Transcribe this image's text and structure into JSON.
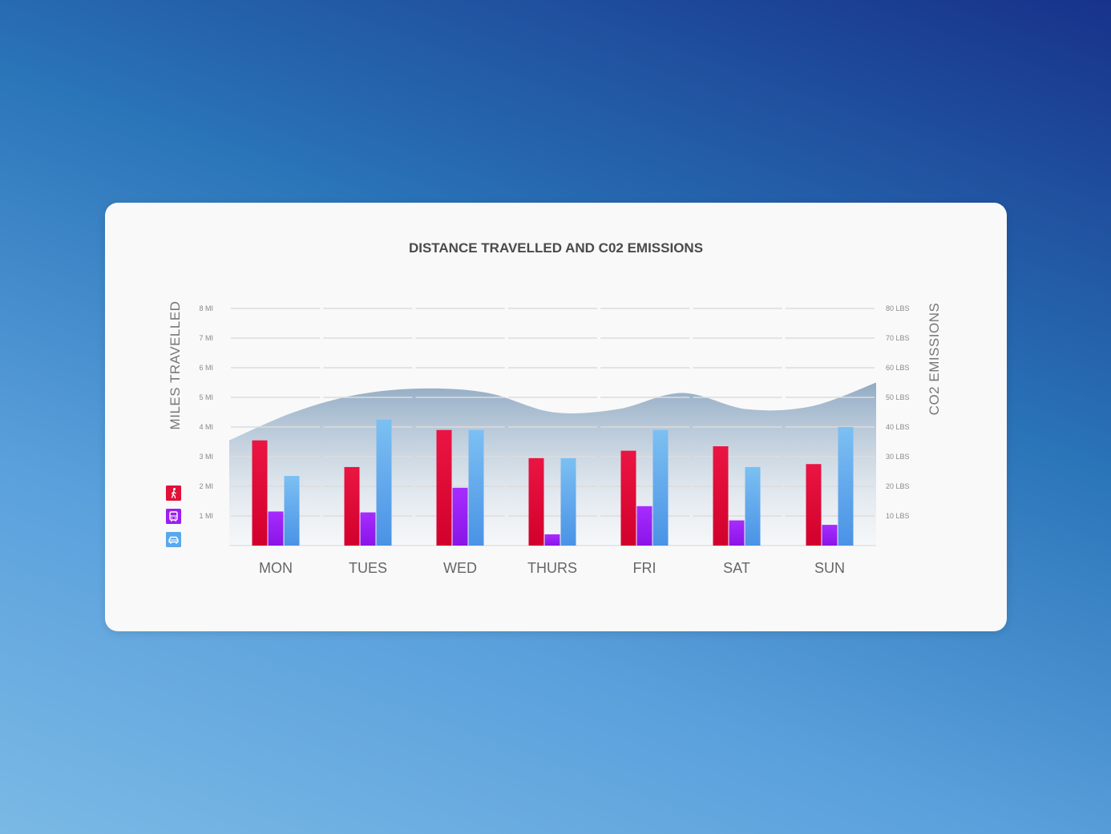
{
  "chart_data": {
    "type": "bar",
    "title": "DISTANCE TRAVELLED AND C02 EMISSIONS",
    "ylabel": "MILES TRAVELLED",
    "y2label": "CO2 EMISSIONS",
    "ylim": [
      0,
      8
    ],
    "y2lim": [
      0,
      80
    ],
    "y_ticks": [
      "1 MI",
      "2 MI",
      "3 MI",
      "4 MI",
      "5 MI",
      "6 MI",
      "7 MI",
      "8 MI"
    ],
    "y2_ticks": [
      "10 LBS",
      "20 LBS",
      "30 LBS",
      "40 LBS",
      "50 LBS",
      "60 LBS",
      "70 LBS",
      "80 LBS"
    ],
    "categories": [
      "MON",
      "TUES",
      "WED",
      "THURS",
      "FRI",
      "SAT",
      "SUN"
    ],
    "series": [
      {
        "icon": "walking-icon",
        "color": "#e0123a",
        "values": [
          3.55,
          2.65,
          3.9,
          2.95,
          3.2,
          3.35,
          2.75
        ]
      },
      {
        "icon": "bus-icon",
        "color": "#9b1ff0",
        "values": [
          1.15,
          1.12,
          1.95,
          0.38,
          1.33,
          0.85,
          0.7
        ]
      },
      {
        "icon": "car-icon",
        "color": "#5aa8ec",
        "values": [
          2.35,
          4.25,
          3.9,
          2.95,
          3.9,
          2.65,
          4.0
        ]
      }
    ],
    "area": {
      "axis": "secondary",
      "color": "#7f9dba",
      "values": [
        35.5,
        45,
        51,
        53,
        51.5,
        45,
        46,
        51.5,
        46,
        47,
        55
      ]
    },
    "grid": true,
    "legend_position": "left"
  }
}
